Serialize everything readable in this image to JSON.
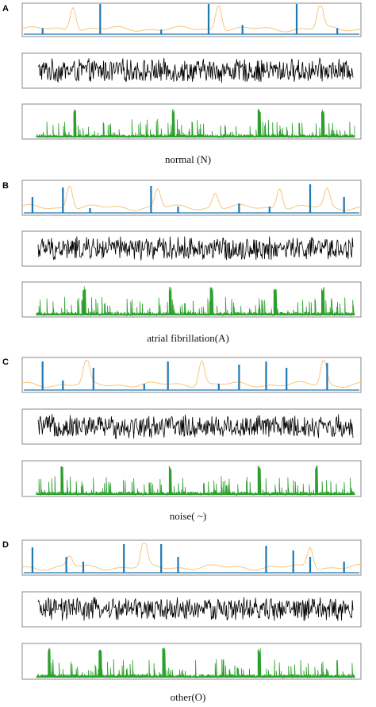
{
  "panels": [
    {
      "letter": "A",
      "caption": "normal (N)"
    },
    {
      "letter": "B",
      "caption": "atrial fibrillation(A)"
    },
    {
      "letter": "C",
      "caption": "noise( ~)"
    },
    {
      "letter": "D",
      "caption": "other(O)"
    }
  ],
  "colors": {
    "attention": "#f5c77e",
    "ecg": "#1f77b4",
    "spectrum": "#000000",
    "peaks": "#2ca02c",
    "frame": "#8a8a8a"
  },
  "chart_data": [
    {
      "type": "line",
      "panel": "A",
      "caption": "normal (N)",
      "rows": [
        "ecg-with-attention",
        "noise-signal",
        "peak-signal"
      ],
      "series": [
        {
          "role": "ecg",
          "color": "#1f77b4",
          "spikes": [
            0.06,
            0.23,
            0.41,
            0.55,
            0.65,
            0.81,
            0.93
          ],
          "spike_heights": [
            0.2,
            1.0,
            0.15,
            1.0,
            0.3,
            1.0,
            0.2
          ]
        },
        {
          "role": "attention",
          "color": "#f5c77e",
          "peaks": [
            0.15,
            0.58,
            0.88
          ],
          "peak_heights": [
            0.85,
            0.95,
            0.9
          ]
        },
        {
          "role": "black-noise",
          "color": "#000000"
        },
        {
          "role": "green-peaks",
          "color": "#2ca02c",
          "big_peaks": [
            0.12,
            0.43,
            0.7,
            0.9
          ]
        }
      ]
    },
    {
      "type": "line",
      "panel": "B",
      "caption": "atrial fibrillation(A)",
      "rows": [
        "ecg-with-attention",
        "noise-signal",
        "peak-signal"
      ],
      "series": [
        {
          "role": "ecg",
          "color": "#1f77b4",
          "spikes": [
            0.03,
            0.12,
            0.2,
            0.38,
            0.46,
            0.64,
            0.73,
            0.85,
            0.95
          ],
          "spike_heights": [
            0.5,
            0.8,
            0.15,
            0.85,
            0.2,
            0.3,
            0.2,
            0.9,
            0.5
          ]
        },
        {
          "role": "attention",
          "color": "#f5c77e",
          "peaks": [
            0.14,
            0.4,
            0.57,
            0.76,
            0.9
          ],
          "peak_heights": [
            0.8,
            0.6,
            0.5,
            0.7,
            0.6
          ]
        },
        {
          "role": "black-noise",
          "color": "#000000"
        },
        {
          "role": "green-peaks",
          "color": "#2ca02c",
          "big_peaks": [
            0.15,
            0.42,
            0.55,
            0.75,
            0.9
          ]
        }
      ]
    },
    {
      "type": "line",
      "panel": "C",
      "caption": "noise( ~)",
      "rows": [
        "ecg-with-attention",
        "noise-signal",
        "peak-signal"
      ],
      "series": [
        {
          "role": "ecg",
          "color": "#1f77b4",
          "spikes": [
            0.06,
            0.12,
            0.21,
            0.36,
            0.43,
            0.58,
            0.64,
            0.72,
            0.78,
            0.9
          ],
          "spike_heights": [
            0.9,
            0.3,
            0.7,
            0.2,
            0.9,
            0.2,
            0.8,
            0.9,
            0.7,
            0.85
          ]
        },
        {
          "role": "attention",
          "color": "#f5c77e",
          "peaks": [
            0.19,
            0.53,
            0.89
          ],
          "peak_heights": [
            0.85,
            0.85,
            0.9
          ]
        },
        {
          "role": "black-noise",
          "color": "#000000"
        },
        {
          "role": "green-peaks",
          "color": "#2ca02c",
          "big_peaks": [
            0.08,
            0.42,
            0.7,
            0.88
          ]
        }
      ]
    },
    {
      "type": "line",
      "panel": "D",
      "caption": "other(O)",
      "rows": [
        "ecg-with-attention",
        "noise-signal",
        "peak-signal"
      ],
      "series": [
        {
          "role": "ecg",
          "color": "#1f77b4",
          "spikes": [
            0.03,
            0.13,
            0.18,
            0.3,
            0.41,
            0.46,
            0.72,
            0.8,
            0.85,
            0.95
          ],
          "spike_heights": [
            0.8,
            0.5,
            0.35,
            0.9,
            0.9,
            0.5,
            0.85,
            0.7,
            0.5,
            0.35
          ]
        },
        {
          "role": "attention",
          "color": "#f5c77e",
          "peaks": [
            0.14,
            0.36,
            0.85
          ],
          "peak_heights": [
            0.35,
            0.9,
            0.7
          ]
        },
        {
          "role": "black-noise",
          "color": "#000000"
        },
        {
          "role": "green-peaks",
          "color": "#2ca02c",
          "big_peaks": [
            0.04,
            0.2,
            0.4,
            0.7
          ]
        }
      ]
    }
  ]
}
